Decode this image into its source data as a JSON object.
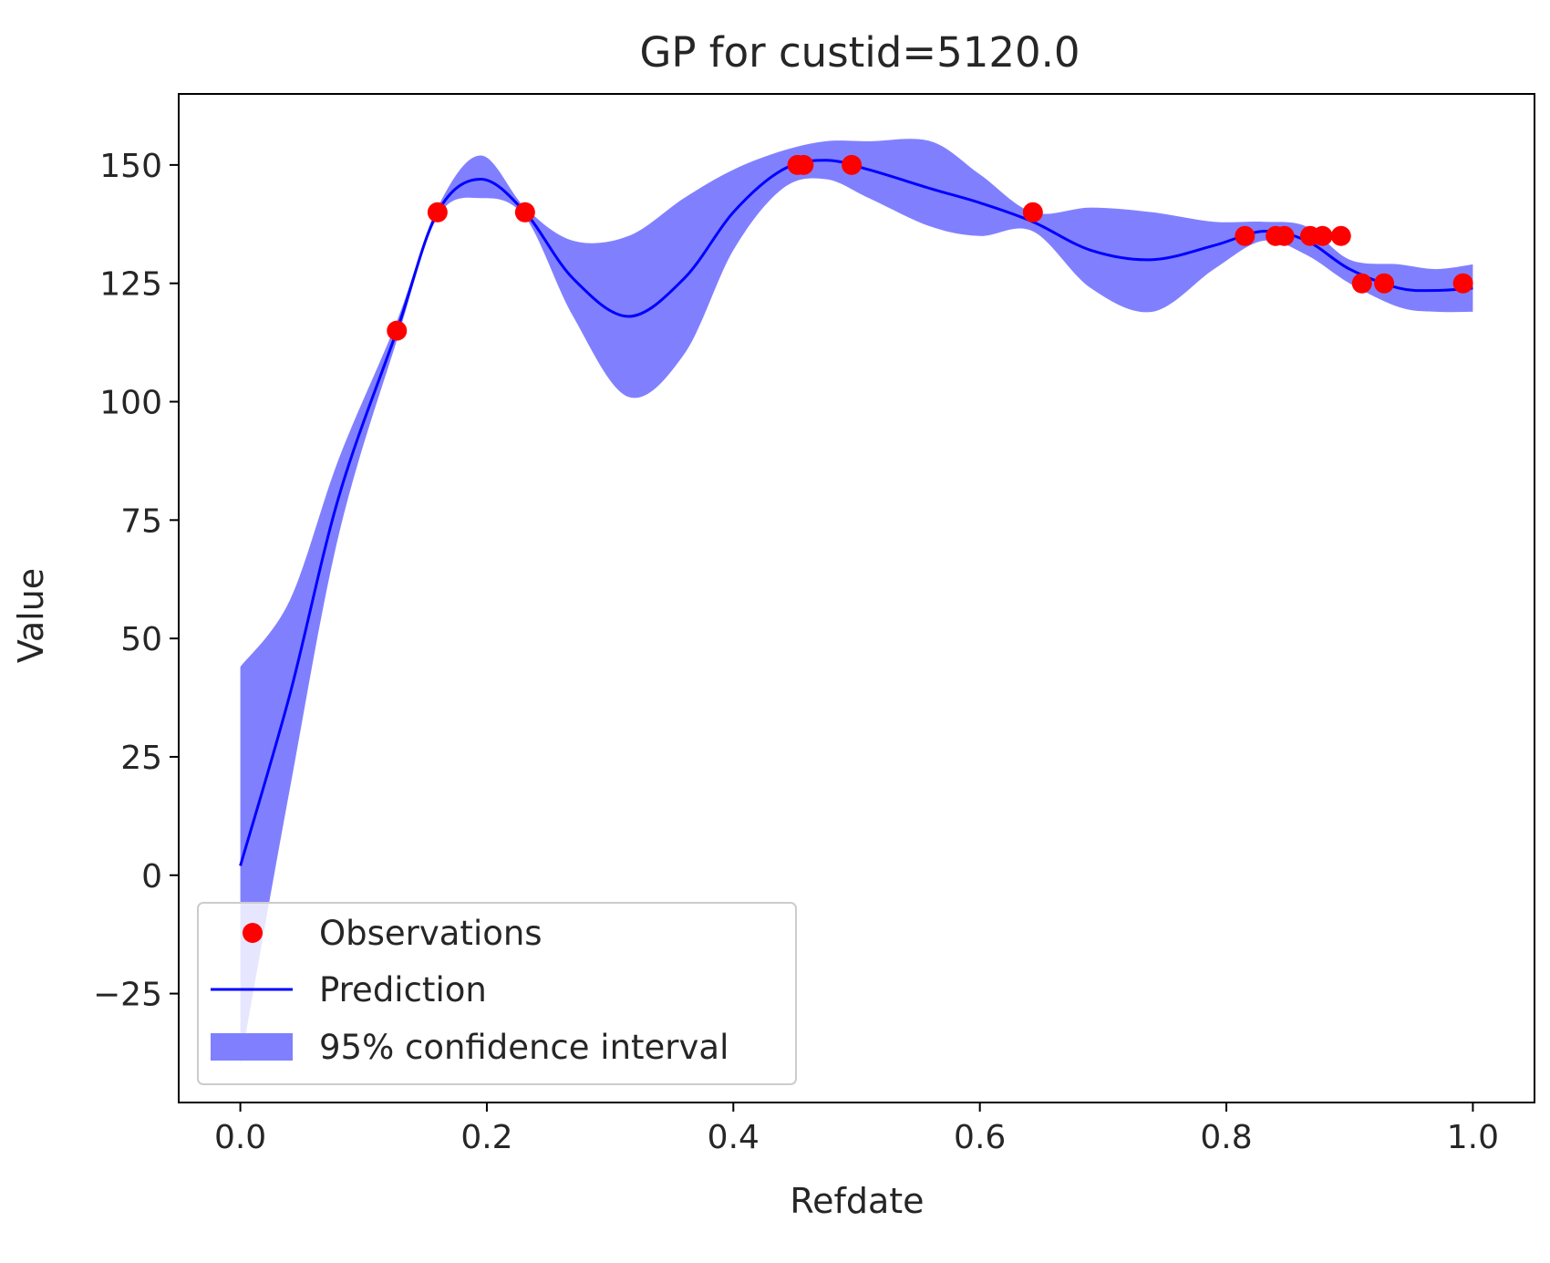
{
  "chart_data": {
    "type": "line",
    "title": "GP for custid=5120.0",
    "xlabel": "Refdate",
    "ylabel": "Value",
    "xlim": [
      -0.05,
      1.05
    ],
    "ylim": [
      -48,
      165
    ],
    "xticks": [
      0.0,
      0.2,
      0.4,
      0.6,
      0.8,
      1.0
    ],
    "xtick_labels": [
      "0.0",
      "0.2",
      "0.4",
      "0.6",
      "0.8",
      "1.0"
    ],
    "yticks": [
      -25,
      0,
      25,
      50,
      75,
      100,
      125,
      150
    ],
    "ytick_labels": [
      "−25",
      "0",
      "25",
      "50",
      "75",
      "100",
      "125",
      "150"
    ],
    "grid": false,
    "legend_position": "lower-left",
    "legend": [
      {
        "label": "Observations",
        "kind": "marker",
        "color": "#ff0000"
      },
      {
        "label": "Prediction",
        "kind": "line",
        "color": "#0000ff"
      },
      {
        "label": "95% confidence interval",
        "kind": "patch",
        "color": "#8080ff"
      }
    ],
    "series": [
      {
        "name": "Observations",
        "kind": "scatter",
        "color": "#ff0000",
        "x": [
          0.127,
          0.16,
          0.231,
          0.452,
          0.457,
          0.496,
          0.643,
          0.815,
          0.84,
          0.847,
          0.868,
          0.878,
          0.893,
          0.91,
          0.928,
          0.992
        ],
        "y": [
          115,
          140,
          140,
          150,
          150,
          150,
          140,
          135,
          135,
          135,
          135,
          135,
          135,
          125,
          125,
          125
        ]
      },
      {
        "name": "Prediction",
        "kind": "line",
        "color": "#0000ff",
        "x": [
          0.0,
          0.04,
          0.08,
          0.127,
          0.16,
          0.195,
          0.231,
          0.27,
          0.315,
          0.36,
          0.4,
          0.44,
          0.475,
          0.51,
          0.56,
          0.6,
          0.643,
          0.69,
          0.74,
          0.79,
          0.83,
          0.865,
          0.9,
          0.94,
          0.97,
          1.0
        ],
        "y": [
          2,
          38,
          80,
          115,
          140,
          147,
          140,
          126,
          118,
          126,
          140,
          149,
          151,
          149,
          145,
          142,
          138,
          132,
          130,
          133,
          136,
          134,
          128,
          124,
          123.5,
          124
        ]
      },
      {
        "name": "95% confidence interval",
        "kind": "band",
        "color": "#8080ff",
        "x": [
          0.0,
          0.04,
          0.08,
          0.127,
          0.16,
          0.195,
          0.231,
          0.27,
          0.315,
          0.36,
          0.4,
          0.44,
          0.475,
          0.51,
          0.56,
          0.6,
          0.643,
          0.69,
          0.74,
          0.79,
          0.83,
          0.865,
          0.9,
          0.94,
          0.97,
          1.0
        ],
        "upper": [
          44,
          58,
          88,
          117,
          141,
          152,
          141,
          134,
          135,
          143,
          149,
          153,
          155,
          155,
          155,
          148,
          140,
          141,
          140,
          138,
          138,
          137,
          130,
          129,
          128,
          129
        ],
        "lower": [
          -40,
          18,
          72,
          113,
          139,
          143,
          139,
          118,
          101,
          110,
          132,
          145,
          147,
          143,
          137,
          135,
          136,
          124,
          119,
          128,
          134,
          131,
          125,
          120,
          119,
          119
        ]
      }
    ]
  }
}
